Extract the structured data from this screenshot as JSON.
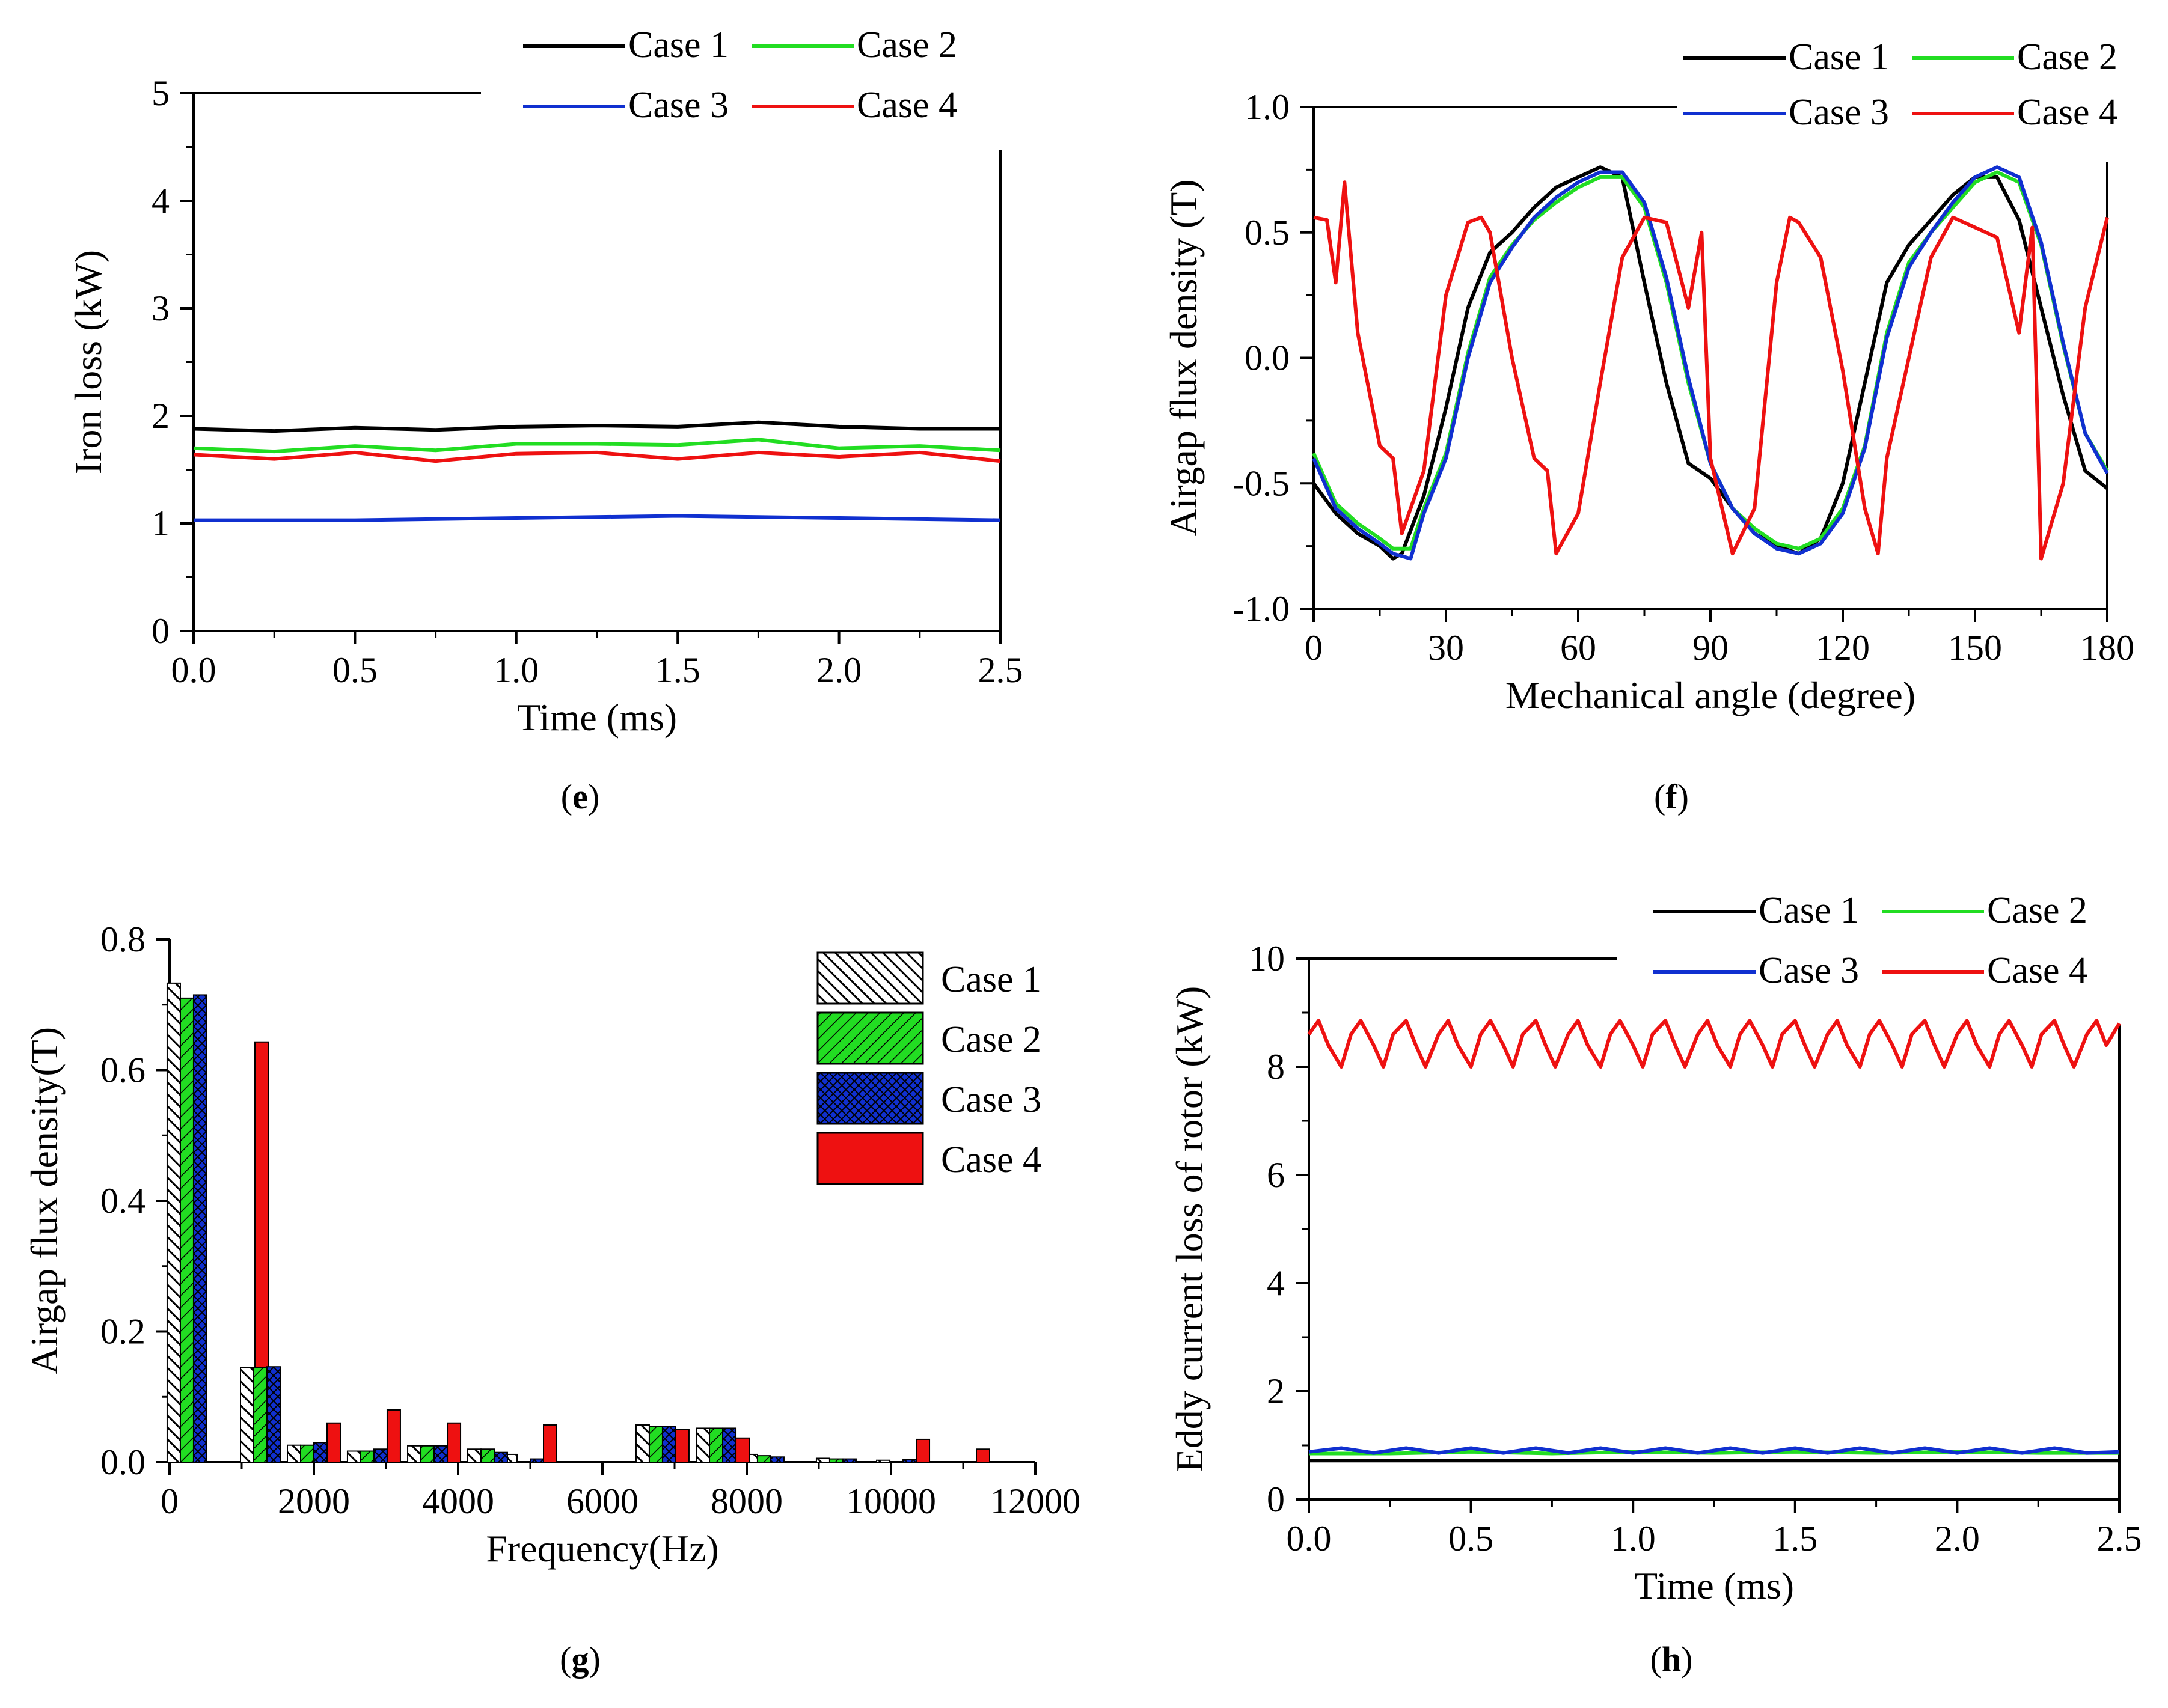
{
  "colors": {
    "case1": "#000000",
    "case2": "#22dd22",
    "case3": "#1030d0",
    "case4": "#ee1111"
  },
  "legend_labels": [
    "Case 1",
    "Case 2",
    "Case 3",
    "Case 4"
  ],
  "captions": {
    "e": "e",
    "f": "f",
    "g": "g",
    "h": "h"
  },
  "chart_data": [
    {
      "id": "e",
      "type": "line",
      "xlabel": "Time (ms)",
      "ylabel": "Iron loss (kW)",
      "xlim": [
        0,
        2.5
      ],
      "ylim": [
        0,
        5
      ],
      "xticks": [
        "0.0",
        "0.5",
        "1.0",
        "1.5",
        "2.0",
        "2.5"
      ],
      "yticks": [
        "0",
        "1",
        "2",
        "3",
        "4",
        "5"
      ],
      "series": [
        {
          "name": "Case 1",
          "x": [
            0,
            0.25,
            0.5,
            0.75,
            1.0,
            1.25,
            1.5,
            1.75,
            2.0,
            2.25,
            2.5
          ],
          "values": [
            1.88,
            1.86,
            1.89,
            1.87,
            1.9,
            1.91,
            1.9,
            1.94,
            1.9,
            1.88,
            1.88
          ]
        },
        {
          "name": "Case 2",
          "x": [
            0,
            0.25,
            0.5,
            0.75,
            1.0,
            1.25,
            1.5,
            1.75,
            2.0,
            2.25,
            2.5
          ],
          "values": [
            1.7,
            1.67,
            1.72,
            1.68,
            1.74,
            1.74,
            1.73,
            1.78,
            1.7,
            1.72,
            1.68
          ]
        },
        {
          "name": "Case 3",
          "x": [
            0,
            0.5,
            1.0,
            1.5,
            2.0,
            2.5
          ],
          "values": [
            1.03,
            1.03,
            1.05,
            1.07,
            1.05,
            1.03
          ]
        },
        {
          "name": "Case 4",
          "x": [
            0,
            0.25,
            0.5,
            0.75,
            1.0,
            1.25,
            1.5,
            1.75,
            2.0,
            2.25,
            2.5
          ],
          "values": [
            1.64,
            1.6,
            1.66,
            1.58,
            1.65,
            1.66,
            1.6,
            1.66,
            1.62,
            1.66,
            1.58
          ]
        }
      ]
    },
    {
      "id": "f",
      "type": "line",
      "xlabel": "Mechanical angle (degree)",
      "ylabel": "Airgap flux density (T)",
      "xlim": [
        0,
        180
      ],
      "ylim": [
        -1,
        1
      ],
      "xticks": [
        "0",
        "30",
        "60",
        "90",
        "120",
        "150",
        "180"
      ],
      "yticks": [
        "-1.0",
        "-0.5",
        "0.0",
        "0.5",
        "1.0"
      ],
      "series": [
        {
          "name": "Case 1",
          "x": [
            0,
            5,
            10,
            15,
            18,
            20,
            25,
            30,
            35,
            40,
            45,
            50,
            55,
            60,
            65,
            70,
            75,
            80,
            85,
            90,
            95,
            100,
            105,
            110,
            115,
            120,
            125,
            130,
            135,
            140,
            145,
            150,
            155,
            160,
            165,
            170,
            175,
            180
          ],
          "values": [
            -0.5,
            -0.62,
            -0.7,
            -0.75,
            -0.8,
            -0.78,
            -0.55,
            -0.2,
            0.2,
            0.42,
            0.5,
            0.6,
            0.68,
            0.72,
            0.76,
            0.72,
            0.3,
            -0.1,
            -0.42,
            -0.48,
            -0.6,
            -0.7,
            -0.75,
            -0.78,
            -0.72,
            -0.5,
            -0.1,
            0.3,
            0.45,
            0.55,
            0.65,
            0.72,
            0.72,
            0.55,
            0.2,
            -0.15,
            -0.45,
            -0.52
          ]
        },
        {
          "name": "Case 2",
          "x": [
            0,
            5,
            10,
            15,
            18,
            22,
            25,
            30,
            35,
            40,
            45,
            50,
            55,
            60,
            65,
            70,
            75,
            80,
            85,
            90,
            95,
            100,
            105,
            110,
            115,
            120,
            125,
            130,
            135,
            140,
            145,
            150,
            155,
            160,
            165,
            170,
            175,
            180
          ],
          "values": [
            -0.38,
            -0.58,
            -0.66,
            -0.72,
            -0.76,
            -0.76,
            -0.6,
            -0.38,
            0.02,
            0.32,
            0.45,
            0.55,
            0.62,
            0.68,
            0.72,
            0.72,
            0.6,
            0.3,
            -0.1,
            -0.42,
            -0.6,
            -0.68,
            -0.74,
            -0.76,
            -0.72,
            -0.6,
            -0.35,
            0.1,
            0.38,
            0.5,
            0.6,
            0.7,
            0.74,
            0.7,
            0.45,
            0.05,
            -0.3,
            -0.45
          ]
        },
        {
          "name": "Case 3",
          "x": [
            0,
            5,
            10,
            15,
            18,
            22,
            25,
            30,
            35,
            40,
            45,
            50,
            55,
            60,
            65,
            70,
            75,
            80,
            85,
            90,
            95,
            100,
            105,
            110,
            115,
            120,
            125,
            130,
            135,
            140,
            145,
            150,
            155,
            160,
            165,
            170,
            175,
            180
          ],
          "values": [
            -0.4,
            -0.6,
            -0.68,
            -0.74,
            -0.78,
            -0.8,
            -0.62,
            -0.4,
            0.0,
            0.3,
            0.44,
            0.56,
            0.64,
            0.7,
            0.74,
            0.74,
            0.62,
            0.32,
            -0.08,
            -0.42,
            -0.6,
            -0.7,
            -0.76,
            -0.78,
            -0.74,
            -0.62,
            -0.36,
            0.08,
            0.36,
            0.5,
            0.62,
            0.72,
            0.76,
            0.72,
            0.46,
            0.06,
            -0.3,
            -0.46
          ]
        },
        {
          "name": "Case 4",
          "x": [
            0,
            3,
            5,
            7,
            10,
            15,
            18,
            20,
            25,
            30,
            35,
            38,
            40,
            45,
            50,
            53,
            55,
            60,
            65,
            70,
            75,
            80,
            85,
            88,
            90,
            95,
            100,
            105,
            108,
            110,
            115,
            120,
            125,
            128,
            130,
            135,
            140,
            145,
            150,
            155,
            160,
            163,
            165,
            170,
            175,
            180
          ],
          "values": [
            0.56,
            0.55,
            0.3,
            0.7,
            0.1,
            -0.35,
            -0.4,
            -0.7,
            -0.45,
            0.25,
            0.54,
            0.56,
            0.5,
            0.0,
            -0.4,
            -0.45,
            -0.78,
            -0.62,
            -0.1,
            0.4,
            0.56,
            0.54,
            0.2,
            0.5,
            -0.4,
            -0.78,
            -0.6,
            0.3,
            0.56,
            0.54,
            0.4,
            -0.05,
            -0.6,
            -0.78,
            -0.4,
            0.0,
            0.4,
            0.56,
            0.52,
            0.48,
            0.1,
            0.52,
            -0.8,
            -0.5,
            0.2,
            0.56
          ]
        }
      ]
    },
    {
      "id": "g",
      "type": "bar",
      "xlabel": "Frequency(Hz)",
      "ylabel": "Airgap flux density(T)",
      "xlim": [
        0,
        12000
      ],
      "ylim": [
        0,
        0.8
      ],
      "xticks": [
        "0",
        "2000",
        "4000",
        "6000",
        "8000",
        "10000",
        "12000"
      ],
      "yticks": [
        "0.0",
        "0.2",
        "0.4",
        "0.6",
        "0.8"
      ],
      "categories": [
        333,
        1000,
        2000,
        2833,
        3667,
        4500,
        5000,
        6833,
        7667,
        8333,
        9333,
        10167,
        11000
      ],
      "series": [
        {
          "name": "Case 1",
          "values": [
            0.733,
            0,
            0.026,
            0.017,
            0.025,
            0.02,
            0.012,
            0.057,
            0.052,
            0.012,
            0.006,
            0.003,
            0
          ]
        },
        {
          "name": "Case 2",
          "values": [
            0.71,
            0,
            0.026,
            0.017,
            0.025,
            0.02,
            0,
            0.055,
            0.052,
            0.01,
            0.005,
            0,
            0
          ]
        },
        {
          "name": "Case 3",
          "values": [
            0.715,
            0,
            0.03,
            0.02,
            0.025,
            0.015,
            0.005,
            0.055,
            0.052,
            0.008,
            0.005,
            0.004,
            0
          ]
        },
        {
          "name": "Case 4",
          "values": [
            0,
            0.643,
            0.06,
            0.08,
            0.06,
            0,
            0.057,
            0.05,
            0.037,
            0,
            0,
            0.035,
            0.02
          ]
        }
      ],
      "extra_bars": [
        {
          "name": "Case 1",
          "x": 1000,
          "value": 0.145
        },
        {
          "name": "Case 2",
          "x": 1000,
          "value": 0.145
        },
        {
          "name": "Case 3",
          "x": 1000,
          "value": 0.146
        }
      ]
    },
    {
      "id": "h",
      "type": "line",
      "xlabel": "Time (ms)",
      "ylabel": "Eddy current loss of rotor (kW)",
      "xlim": [
        0,
        2.5
      ],
      "ylim": [
        0,
        10
      ],
      "xticks": [
        "0.0",
        "0.5",
        "1.0",
        "1.5",
        "2.0",
        "2.5"
      ],
      "yticks": [
        "0",
        "2",
        "4",
        "6",
        "8",
        "10"
      ],
      "series": [
        {
          "name": "Case 1",
          "x": [
            0,
            2.5
          ],
          "values": [
            0.72,
            0.72
          ]
        },
        {
          "name": "Case 2",
          "x": [
            0,
            0.25,
            0.5,
            0.75,
            1.0,
            1.25,
            1.5,
            1.75,
            2.0,
            2.25,
            2.5
          ],
          "values": [
            0.85,
            0.85,
            0.88,
            0.85,
            0.88,
            0.86,
            0.88,
            0.86,
            0.88,
            0.86,
            0.86
          ]
        },
        {
          "name": "Case 3",
          "x": [
            0,
            0.1,
            0.2,
            0.3,
            0.4,
            0.5,
            0.6,
            0.7,
            0.8,
            0.9,
            1.0,
            1.1,
            1.2,
            1.3,
            1.4,
            1.5,
            1.6,
            1.7,
            1.8,
            1.9,
            2.0,
            2.1,
            2.2,
            2.3,
            2.4,
            2.5
          ],
          "values": [
            0.88,
            0.95,
            0.86,
            0.95,
            0.86,
            0.95,
            0.86,
            0.95,
            0.86,
            0.95,
            0.86,
            0.95,
            0.86,
            0.95,
            0.86,
            0.95,
            0.86,
            0.95,
            0.86,
            0.95,
            0.86,
            0.95,
            0.86,
            0.95,
            0.86,
            0.88
          ]
        },
        {
          "name": "Case 4",
          "x": [
            0,
            0.03,
            0.06,
            0.1,
            0.13,
            0.16,
            0.2,
            0.23,
            0.26,
            0.3,
            0.33,
            0.36,
            0.4,
            0.43,
            0.46,
            0.5,
            0.53,
            0.56,
            0.6,
            0.63,
            0.66,
            0.7,
            0.73,
            0.76,
            0.8,
            0.83,
            0.86,
            0.9,
            0.93,
            0.96,
            1.0,
            1.03,
            1.06,
            1.1,
            1.13,
            1.16,
            1.2,
            1.23,
            1.26,
            1.3,
            1.33,
            1.36,
            1.4,
            1.43,
            1.46,
            1.5,
            1.53,
            1.56,
            1.6,
            1.63,
            1.66,
            1.7,
            1.73,
            1.76,
            1.8,
            1.83,
            1.86,
            1.9,
            1.93,
            1.96,
            2.0,
            2.03,
            2.06,
            2.1,
            2.13,
            2.16,
            2.2,
            2.23,
            2.26,
            2.3,
            2.33,
            2.36,
            2.4,
            2.43,
            2.46,
            2.5
          ],
          "values": [
            8.6,
            8.85,
            8.4,
            8.0,
            8.6,
            8.85,
            8.4,
            8.0,
            8.6,
            8.85,
            8.4,
            8.0,
            8.6,
            8.85,
            8.4,
            8.0,
            8.6,
            8.85,
            8.4,
            8.0,
            8.6,
            8.85,
            8.4,
            8.0,
            8.6,
            8.85,
            8.4,
            8.0,
            8.6,
            8.85,
            8.4,
            8.0,
            8.6,
            8.85,
            8.4,
            8.0,
            8.6,
            8.85,
            8.4,
            8.0,
            8.6,
            8.85,
            8.4,
            8.0,
            8.6,
            8.85,
            8.4,
            8.0,
            8.6,
            8.85,
            8.4,
            8.0,
            8.6,
            8.85,
            8.4,
            8.0,
            8.6,
            8.85,
            8.4,
            8.0,
            8.6,
            8.85,
            8.4,
            8.0,
            8.6,
            8.85,
            8.4,
            8.0,
            8.6,
            8.85,
            8.4,
            8.0,
            8.6,
            8.85,
            8.4,
            8.8
          ]
        }
      ]
    }
  ]
}
